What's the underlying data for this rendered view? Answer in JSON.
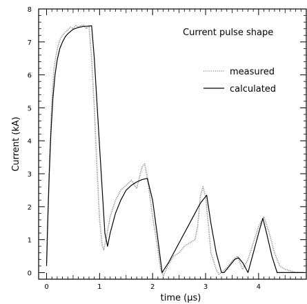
{
  "chart_data": {
    "type": "line",
    "title": "Current pulse shape",
    "xlabel": "time (µs)",
    "ylabel": "Current (kA)",
    "xlim": [
      -0.15,
      4.9
    ],
    "ylim": [
      -0.2,
      8
    ],
    "x_ticks": [
      0,
      1,
      2,
      3,
      4
    ],
    "y_ticks": [
      0,
      1,
      2,
      3,
      4,
      5,
      6,
      7,
      8
    ],
    "grid": false,
    "legend_placement": "top-right",
    "series": [
      {
        "name": "measured",
        "style": "dotted",
        "color": "#888888",
        "x": [
          0.0,
          0.03,
          0.06,
          0.1,
          0.14,
          0.18,
          0.22,
          0.26,
          0.3,
          0.35,
          0.4,
          0.45,
          0.5,
          0.55,
          0.6,
          0.65,
          0.7,
          0.75,
          0.8,
          0.85,
          0.9,
          0.95,
          1.0,
          1.05,
          1.08,
          1.12,
          1.2,
          1.3,
          1.4,
          1.5,
          1.6,
          1.7,
          1.8,
          1.85,
          1.9,
          2.0,
          2.1,
          2.15,
          2.2,
          2.3,
          2.4,
          2.5,
          2.6,
          2.7,
          2.8,
          2.85,
          2.9,
          2.95,
          3.0,
          3.05,
          3.1,
          3.2,
          3.25,
          3.3,
          3.4,
          3.5,
          3.6,
          3.65,
          3.7,
          3.8,
          3.9,
          4.0,
          4.1,
          4.2,
          4.3,
          4.4,
          4.5,
          4.6,
          4.7,
          4.8
        ],
        "y": [
          0.3,
          2.0,
          3.6,
          5.2,
          6.2,
          6.6,
          6.9,
          7.1,
          7.2,
          7.3,
          7.35,
          7.45,
          7.4,
          7.5,
          7.45,
          7.5,
          7.5,
          7.4,
          7.5,
          6.5,
          5.0,
          3.2,
          1.6,
          0.8,
          0.7,
          1.0,
          1.7,
          2.2,
          2.5,
          2.65,
          2.8,
          2.55,
          3.2,
          3.3,
          2.9,
          1.7,
          0.7,
          0.1,
          -0.1,
          0.25,
          0.5,
          0.6,
          0.8,
          0.9,
          1.0,
          1.4,
          2.3,
          2.6,
          2.3,
          1.5,
          0.6,
          0.1,
          -0.05,
          0.0,
          0.15,
          0.35,
          0.5,
          0.3,
          0.1,
          0.4,
          0.9,
          1.4,
          1.7,
          1.2,
          0.6,
          0.2,
          0.1,
          0.05,
          0.0,
          0.0
        ]
      },
      {
        "name": "calculated",
        "style": "solid",
        "color": "#000000",
        "x": [
          0.0,
          0.02,
          0.05,
          0.08,
          0.12,
          0.16,
          0.2,
          0.25,
          0.3,
          0.35,
          0.4,
          0.5,
          0.6,
          0.7,
          0.8,
          0.85,
          0.9,
          1.0,
          1.1,
          1.15,
          1.2,
          1.3,
          1.4,
          1.5,
          1.6,
          1.7,
          1.8,
          1.9,
          2.0,
          2.1,
          2.18,
          2.3,
          2.5,
          2.7,
          2.9,
          3.02,
          3.1,
          3.2,
          3.3,
          3.35,
          3.45,
          3.55,
          3.62,
          3.7,
          3.8,
          3.9,
          4.0,
          4.08,
          4.15,
          4.25,
          4.35,
          4.5,
          4.7,
          4.85
        ],
        "y": [
          0.2,
          1.5,
          3.0,
          4.2,
          5.3,
          6.0,
          6.45,
          6.8,
          7.0,
          7.15,
          7.25,
          7.38,
          7.44,
          7.47,
          7.48,
          7.49,
          6.5,
          3.8,
          1.2,
          0.8,
          1.2,
          1.8,
          2.2,
          2.5,
          2.65,
          2.75,
          2.82,
          2.86,
          2.2,
          1.0,
          0.0,
          0.3,
          0.9,
          1.5,
          2.1,
          2.35,
          1.5,
          0.6,
          0.0,
          0.0,
          0.2,
          0.4,
          0.45,
          0.3,
          0.0,
          0.6,
          1.2,
          1.65,
          1.2,
          0.5,
          0.0,
          0.0,
          0.0,
          0.0
        ]
      }
    ]
  }
}
